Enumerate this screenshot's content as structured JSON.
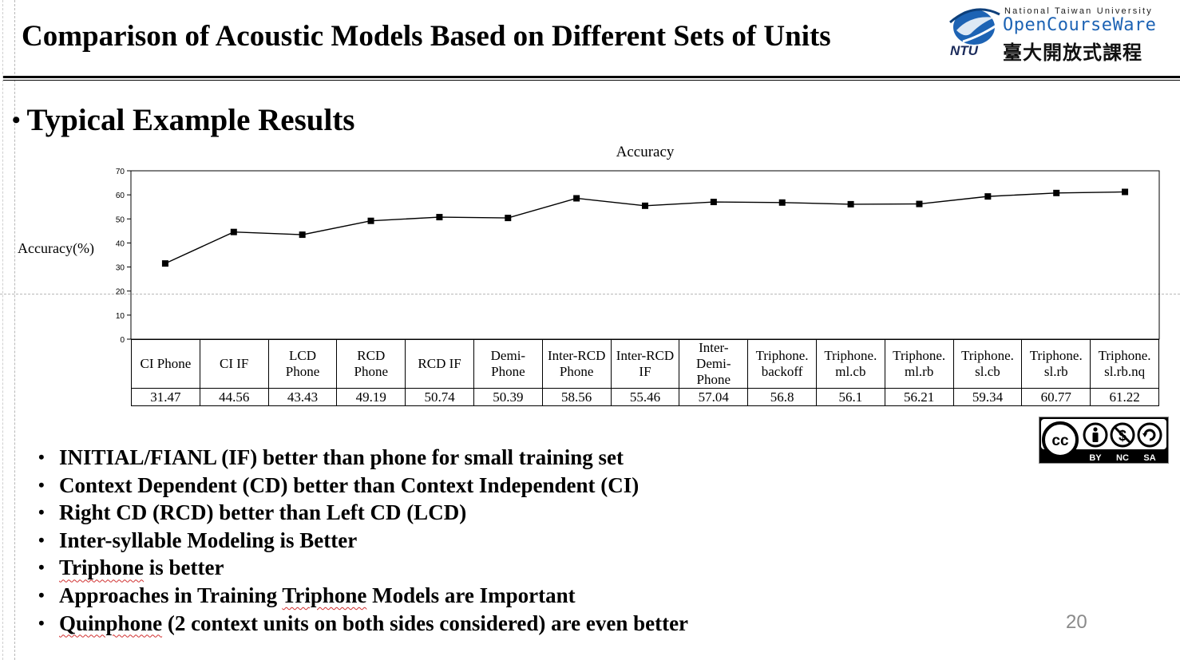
{
  "slide": {
    "title": "Comparison of Acoustic Models Based on Different Sets of Units",
    "subtitle": "Typical Example Results",
    "page_number": "20"
  },
  "logo": {
    "university": "National Taiwan University",
    "brand": "OpenCourseWare",
    "chinese": "臺大開放式課程",
    "mark": "NTU"
  },
  "license": {
    "labels": [
      "BY",
      "NC",
      "SA"
    ],
    "cc": "cc"
  },
  "chart_data": {
    "type": "line",
    "title": "Accuracy",
    "ylabel": "Accuracy(%)",
    "xlabel": "",
    "ylim": [
      0,
      70
    ],
    "yticks": [
      0,
      10,
      20,
      30,
      40,
      50,
      60,
      70
    ],
    "grid": false,
    "legend": "none",
    "line_color": "#000000",
    "categories": [
      [
        "CI Phone"
      ],
      [
        "CI IF"
      ],
      [
        "LCD",
        "Phone"
      ],
      [
        "RCD",
        "Phone"
      ],
      [
        "RCD IF"
      ],
      [
        "Demi-",
        "Phone"
      ],
      [
        "Inter-RCD",
        "Phone"
      ],
      [
        "Inter-RCD",
        "IF"
      ],
      [
        "Inter-",
        "Demi-",
        "Phone"
      ],
      [
        "Triphone.",
        "backoff"
      ],
      [
        "Triphone.",
        "ml.cb"
      ],
      [
        "Triphone.",
        "ml.rb"
      ],
      [
        "Triphone.",
        "sl.cb"
      ],
      [
        "Triphone.",
        "sl.rb"
      ],
      [
        "Triphone.",
        "sl.rb.nq"
      ]
    ],
    "value_labels": [
      "31.47",
      "44.56",
      "43.43",
      "49.19",
      "50.74",
      "50.39",
      "58.56",
      "55.46",
      "57.04",
      "56.8",
      "56.1",
      "56.21",
      "59.34",
      "60.77",
      "61.22"
    ],
    "values": [
      31.47,
      44.56,
      43.43,
      49.19,
      50.74,
      50.39,
      58.56,
      55.46,
      57.04,
      56.8,
      56.1,
      56.21,
      59.34,
      60.77,
      61.22
    ]
  },
  "bullets": [
    {
      "text": "INITIAL/FIANL (IF) better than phone for small training set"
    },
    {
      "text": "Context Dependent (CD) better than Context Independent (CI)"
    },
    {
      "text": "Right CD (RCD) better than Left CD (LCD)"
    },
    {
      "text": "Inter-syllable Modeling is Better"
    },
    {
      "pre": "",
      "flag": "Triphone",
      "post": " is better"
    },
    {
      "pre": "Approaches in Training ",
      "flag": "Triphone",
      "post": " Models are Important"
    },
    {
      "pre": "",
      "flag": "Quinphone",
      "post": " (2 context units on both sides considered) are even better"
    }
  ]
}
